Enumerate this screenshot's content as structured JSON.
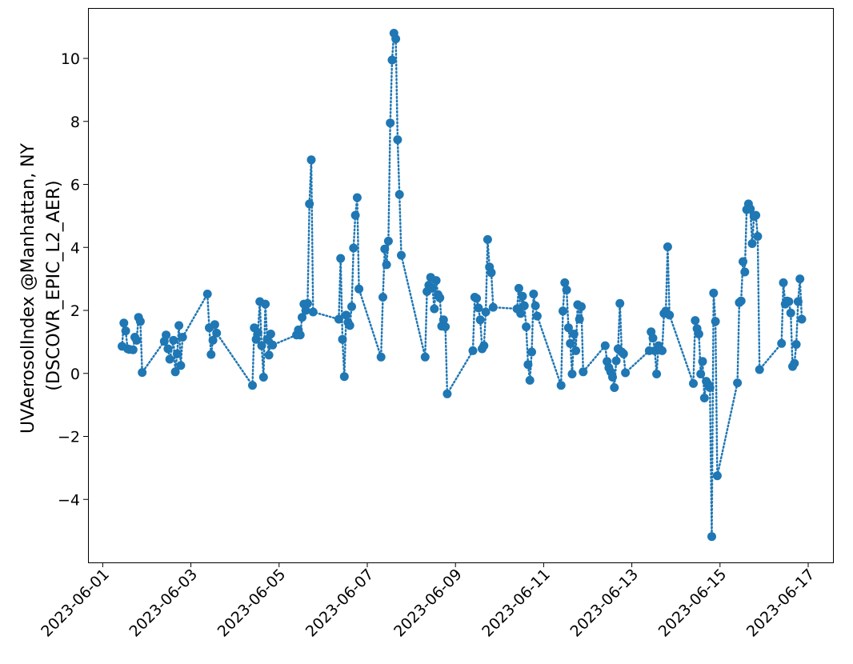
{
  "chart_data": {
    "type": "line",
    "ylabel_lines": [
      "UVAerosolIndex @Manhattan, NY",
      "(DSCOVR_EPIC_L2_AER)"
    ],
    "xlabel": "",
    "title": "",
    "x_ticks": [
      "2023-06-01",
      "2023-06-03",
      "2023-06-05",
      "2023-06-07",
      "2023-06-09",
      "2023-06-11",
      "2023-06-13",
      "2023-06-15",
      "2023-06-17"
    ],
    "y_ticks": [
      "−4",
      "−2",
      "0",
      "2",
      "4",
      "6",
      "8",
      "10"
    ],
    "xlim": [
      "2023-05-31T16:00",
      "2023-06-17T13:30"
    ],
    "ylim": [
      -6.0,
      11.6
    ],
    "line_style": "dotted",
    "marker": "circle",
    "grid": false,
    "legend": "none",
    "series_color": "#1f77b4",
    "series": [
      {
        "points": [
          [
            "2023-06-01T10:30",
            0.86
          ],
          [
            "2023-06-01T11:30",
            1.6
          ],
          [
            "2023-06-01T12:30",
            1.35
          ],
          [
            "2023-06-01T13:30",
            0.78
          ],
          [
            "2023-06-01T14:30",
            0.76
          ],
          [
            "2023-06-01T16:30",
            0.75
          ],
          [
            "2023-06-01T17:30",
            1.15
          ],
          [
            "2023-06-01T18:30",
            1.05
          ],
          [
            "2023-06-01T19:30",
            1.78
          ],
          [
            "2023-06-01T20:30",
            1.65
          ],
          [
            "2023-06-01T21:30",
            0.03
          ],
          [
            "2023-06-02T09:30",
            1.02
          ],
          [
            "2023-06-02T10:30",
            1.22
          ],
          [
            "2023-06-02T11:30",
            0.78
          ],
          [
            "2023-06-02T12:30",
            0.45
          ],
          [
            "2023-06-02T14:30",
            1.05
          ],
          [
            "2023-06-02T15:30",
            0.05
          ],
          [
            "2023-06-02T16:30",
            0.62
          ],
          [
            "2023-06-02T17:30",
            1.52
          ],
          [
            "2023-06-02T18:30",
            0.25
          ],
          [
            "2023-06-02T19:30",
            1.15
          ],
          [
            "2023-06-03T09:00",
            2.52
          ],
          [
            "2023-06-03T10:00",
            1.45
          ],
          [
            "2023-06-03T11:00",
            0.6
          ],
          [
            "2023-06-03T12:00",
            1.05
          ],
          [
            "2023-06-03T13:00",
            1.55
          ],
          [
            "2023-06-03T14:00",
            1.28
          ],
          [
            "2023-06-04T09:30",
            -0.38
          ],
          [
            "2023-06-04T10:30",
            1.45
          ],
          [
            "2023-06-04T11:30",
            1.08
          ],
          [
            "2023-06-04T12:30",
            1.3
          ],
          [
            "2023-06-04T13:30",
            2.28
          ],
          [
            "2023-06-04T14:30",
            0.88
          ],
          [
            "2023-06-04T15:30",
            -0.12
          ],
          [
            "2023-06-04T16:30",
            2.2
          ],
          [
            "2023-06-04T17:30",
            1.08
          ],
          [
            "2023-06-04T18:30",
            0.58
          ],
          [
            "2023-06-04T19:30",
            1.25
          ],
          [
            "2023-06-04T20:30",
            0.9
          ],
          [
            "2023-06-05T09:30",
            1.22
          ],
          [
            "2023-06-05T10:30",
            1.38
          ],
          [
            "2023-06-05T11:30",
            1.22
          ],
          [
            "2023-06-05T12:30",
            1.78
          ],
          [
            "2023-06-05T13:30",
            2.2
          ],
          [
            "2023-06-05T14:30",
            2.0
          ],
          [
            "2023-06-05T15:30",
            2.22
          ],
          [
            "2023-06-05T16:30",
            5.38
          ],
          [
            "2023-06-05T17:30",
            6.78
          ],
          [
            "2023-06-05T18:30",
            1.95
          ],
          [
            "2023-06-06T08:30",
            1.72
          ],
          [
            "2023-06-06T09:30",
            3.65
          ],
          [
            "2023-06-06T10:30",
            1.08
          ],
          [
            "2023-06-06T11:30",
            -0.1
          ],
          [
            "2023-06-06T12:30",
            1.85
          ],
          [
            "2023-06-06T13:30",
            1.62
          ],
          [
            "2023-06-06T14:30",
            1.52
          ],
          [
            "2023-06-06T15:30",
            2.12
          ],
          [
            "2023-06-06T16:30",
            3.98
          ],
          [
            "2023-06-06T17:30",
            5.02
          ],
          [
            "2023-06-06T18:30",
            5.58
          ],
          [
            "2023-06-06T19:30",
            2.68
          ],
          [
            "2023-06-07T07:30",
            0.52
          ],
          [
            "2023-06-07T08:30",
            2.42
          ],
          [
            "2023-06-07T09:30",
            3.95
          ],
          [
            "2023-06-07T10:30",
            3.45
          ],
          [
            "2023-06-07T11:30",
            4.2
          ],
          [
            "2023-06-07T12:30",
            7.95
          ],
          [
            "2023-06-07T13:30",
            9.95
          ],
          [
            "2023-06-07T14:30",
            10.8
          ],
          [
            "2023-06-07T15:30",
            10.62
          ],
          [
            "2023-06-07T16:30",
            7.42
          ],
          [
            "2023-06-07T17:30",
            5.68
          ],
          [
            "2023-06-07T18:30",
            3.75
          ],
          [
            "2023-06-08T07:30",
            0.52
          ],
          [
            "2023-06-08T08:30",
            2.6
          ],
          [
            "2023-06-08T09:30",
            2.8
          ],
          [
            "2023-06-08T10:30",
            3.05
          ],
          [
            "2023-06-08T11:30",
            2.7
          ],
          [
            "2023-06-08T12:30",
            2.05
          ],
          [
            "2023-06-08T13:30",
            2.95
          ],
          [
            "2023-06-08T14:30",
            2.5
          ],
          [
            "2023-06-08T15:30",
            2.4
          ],
          [
            "2023-06-08T16:30",
            1.5
          ],
          [
            "2023-06-08T17:30",
            1.7
          ],
          [
            "2023-06-08T18:30",
            1.48
          ],
          [
            "2023-06-08T19:30",
            -0.65
          ],
          [
            "2023-06-09T09:30",
            0.72
          ],
          [
            "2023-06-09T10:30",
            2.42
          ],
          [
            "2023-06-09T11:30",
            2.38
          ],
          [
            "2023-06-09T12:30",
            2.08
          ],
          [
            "2023-06-09T13:30",
            1.7
          ],
          [
            "2023-06-09T14:30",
            0.78
          ],
          [
            "2023-06-09T15:30",
            0.88
          ],
          [
            "2023-06-09T16:30",
            1.95
          ],
          [
            "2023-06-09T17:30",
            4.25
          ],
          [
            "2023-06-09T18:30",
            3.38
          ],
          [
            "2023-06-09T19:30",
            3.2
          ],
          [
            "2023-06-09T20:30",
            2.1
          ],
          [
            "2023-06-10T09:30",
            2.05
          ],
          [
            "2023-06-10T10:30",
            2.7
          ],
          [
            "2023-06-10T11:30",
            1.9
          ],
          [
            "2023-06-10T12:30",
            2.45
          ],
          [
            "2023-06-10T13:30",
            2.15
          ],
          [
            "2023-06-10T14:30",
            1.48
          ],
          [
            "2023-06-10T15:30",
            0.28
          ],
          [
            "2023-06-10T16:30",
            -0.22
          ],
          [
            "2023-06-10T17:30",
            0.68
          ],
          [
            "2023-06-10T18:30",
            2.52
          ],
          [
            "2023-06-10T19:30",
            2.15
          ],
          [
            "2023-06-10T20:30",
            1.82
          ],
          [
            "2023-06-11T09:30",
            -0.38
          ],
          [
            "2023-06-11T10:30",
            1.98
          ],
          [
            "2023-06-11T11:30",
            2.88
          ],
          [
            "2023-06-11T12:30",
            2.65
          ],
          [
            "2023-06-11T13:30",
            1.45
          ],
          [
            "2023-06-11T14:30",
            0.95
          ],
          [
            "2023-06-11T15:30",
            -0.02
          ],
          [
            "2023-06-11T16:30",
            1.25
          ],
          [
            "2023-06-11T17:30",
            0.72
          ],
          [
            "2023-06-11T18:30",
            2.18
          ],
          [
            "2023-06-11T19:30",
            1.72
          ],
          [
            "2023-06-11T20:30",
            2.12
          ],
          [
            "2023-06-11T21:30",
            0.05
          ],
          [
            "2023-06-12T09:30",
            0.88
          ],
          [
            "2023-06-12T10:30",
            0.38
          ],
          [
            "2023-06-12T11:30",
            0.18
          ],
          [
            "2023-06-12T12:30",
            0.05
          ],
          [
            "2023-06-12T13:30",
            -0.12
          ],
          [
            "2023-06-12T14:30",
            -0.45
          ],
          [
            "2023-06-12T15:30",
            0.4
          ],
          [
            "2023-06-12T16:30",
            0.78
          ],
          [
            "2023-06-12T17:30",
            2.22
          ],
          [
            "2023-06-12T18:30",
            0.68
          ],
          [
            "2023-06-12T19:30",
            0.62
          ],
          [
            "2023-06-12T20:30",
            0.02
          ],
          [
            "2023-06-13T09:30",
            0.72
          ],
          [
            "2023-06-13T10:30",
            1.32
          ],
          [
            "2023-06-13T11:30",
            1.12
          ],
          [
            "2023-06-13T12:30",
            0.72
          ],
          [
            "2023-06-13T13:30",
            -0.02
          ],
          [
            "2023-06-13T14:30",
            0.88
          ],
          [
            "2023-06-13T15:30",
            0.75
          ],
          [
            "2023-06-13T16:30",
            0.72
          ],
          [
            "2023-06-13T17:30",
            1.9
          ],
          [
            "2023-06-13T18:30",
            1.98
          ],
          [
            "2023-06-13T19:30",
            4.02
          ],
          [
            "2023-06-13T20:30",
            1.85
          ],
          [
            "2023-06-14T09:30",
            -0.32
          ],
          [
            "2023-06-14T10:30",
            1.68
          ],
          [
            "2023-06-14T11:30",
            1.42
          ],
          [
            "2023-06-14T12:30",
            1.25
          ],
          [
            "2023-06-14T13:30",
            -0.02
          ],
          [
            "2023-06-14T14:30",
            0.38
          ],
          [
            "2023-06-14T15:30",
            -0.78
          ],
          [
            "2023-06-14T16:30",
            -0.25
          ],
          [
            "2023-06-14T17:30",
            -0.35
          ],
          [
            "2023-06-14T18:30",
            -0.45
          ],
          [
            "2023-06-14T19:30",
            -5.18
          ],
          [
            "2023-06-14T20:30",
            2.55
          ],
          [
            "2023-06-14T21:30",
            1.65
          ],
          [
            "2023-06-14T22:30",
            -3.25
          ],
          [
            "2023-06-15T09:30",
            -0.3
          ],
          [
            "2023-06-15T10:30",
            2.25
          ],
          [
            "2023-06-15T11:30",
            2.3
          ],
          [
            "2023-06-15T12:30",
            3.55
          ],
          [
            "2023-06-15T13:30",
            3.22
          ],
          [
            "2023-06-15T14:30",
            5.2
          ],
          [
            "2023-06-15T15:30",
            5.38
          ],
          [
            "2023-06-15T16:30",
            5.22
          ],
          [
            "2023-06-15T17:30",
            4.12
          ],
          [
            "2023-06-15T18:30",
            4.98
          ],
          [
            "2023-06-15T19:30",
            5.02
          ],
          [
            "2023-06-15T20:30",
            4.35
          ],
          [
            "2023-06-15T21:30",
            0.12
          ],
          [
            "2023-06-16T09:30",
            0.95
          ],
          [
            "2023-06-16T10:30",
            2.88
          ],
          [
            "2023-06-16T11:30",
            2.2
          ],
          [
            "2023-06-16T12:30",
            2.3
          ],
          [
            "2023-06-16T13:30",
            2.28
          ],
          [
            "2023-06-16T14:30",
            1.92
          ],
          [
            "2023-06-16T15:30",
            0.22
          ],
          [
            "2023-06-16T16:30",
            0.32
          ],
          [
            "2023-06-16T17:30",
            0.92
          ],
          [
            "2023-06-16T18:30",
            2.28
          ],
          [
            "2023-06-16T19:30",
            3.0
          ],
          [
            "2023-06-16T20:30",
            1.72
          ]
        ]
      }
    ]
  }
}
